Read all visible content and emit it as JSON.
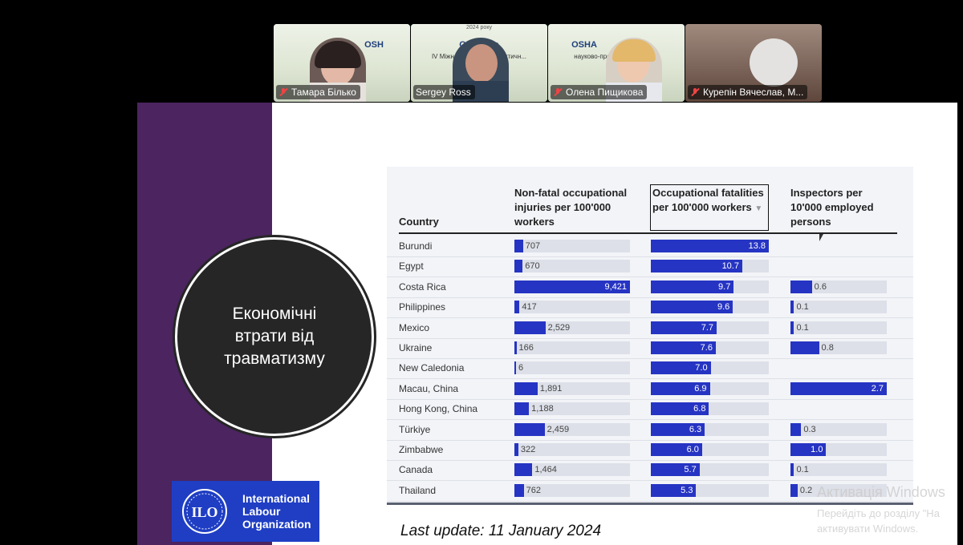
{
  "participants": [
    {
      "name": "Тамара Білько",
      "banner": "OSH",
      "banner_sub": "",
      "muted": true,
      "active": false
    },
    {
      "name": "Sergey Ross",
      "banner": "OSHAgro",
      "banner_sub": "IV Міжнар... науково-практичн...",
      "top_text": "2024 року",
      "muted": false,
      "active": true
    },
    {
      "name": "Олена Пищикова",
      "banner": "OSHA",
      "banner_sub": "науково-практи... нференція",
      "muted": true,
      "active": false
    },
    {
      "name": "Курепін Вячеслав, М...",
      "banner": "",
      "banner_sub": "",
      "muted": true,
      "active": false
    }
  ],
  "slide": {
    "circle_title": "Економічні втрати від травматизму",
    "last_update": "Last update: 11 January 2024",
    "ilo": {
      "line1": "International",
      "line2": "Labour",
      "line3": "Organization",
      "logo_text": "ILO"
    }
  },
  "table": {
    "headers": {
      "country": "Country",
      "injuries": "Non-fatal occupational injuries per 100'000 workers",
      "fatalities": "Occupational fatalities per 100'000 workers",
      "inspectors": "Inspectors per 10'000 employed persons"
    },
    "sort_indicator": "▼",
    "scale": {
      "injuries_max": 9421,
      "fatalities_max": 13.8,
      "inspectors_max": 2.7
    },
    "rows": [
      {
        "country": "Burundi",
        "injuries": 707,
        "injuries_label": "707",
        "fatalities": 13.8,
        "fatalities_label": "13.8",
        "inspectors": null,
        "inspectors_label": ""
      },
      {
        "country": "Egypt",
        "injuries": 670,
        "injuries_label": "670",
        "fatalities": 10.7,
        "fatalities_label": "10.7",
        "inspectors": null,
        "inspectors_label": ""
      },
      {
        "country": "Costa Rica",
        "injuries": 9421,
        "injuries_label": "9,421",
        "fatalities": 9.7,
        "fatalities_label": "9.7",
        "inspectors": 0.6,
        "inspectors_label": "0.6"
      },
      {
        "country": "Philippines",
        "injuries": 417,
        "injuries_label": "417",
        "fatalities": 9.6,
        "fatalities_label": "9.6",
        "inspectors": 0.1,
        "inspectors_label": "0.1"
      },
      {
        "country": "Mexico",
        "injuries": 2529,
        "injuries_label": "2,529",
        "fatalities": 7.7,
        "fatalities_label": "7.7",
        "inspectors": 0.1,
        "inspectors_label": "0.1"
      },
      {
        "country": "Ukraine",
        "injuries": 166,
        "injuries_label": "166",
        "fatalities": 7.6,
        "fatalities_label": "7.6",
        "inspectors": 0.8,
        "inspectors_label": "0.8"
      },
      {
        "country": "New Caledonia",
        "injuries": 6,
        "injuries_label": "6",
        "fatalities": 7.0,
        "fatalities_label": "7.0",
        "inspectors": null,
        "inspectors_label": ""
      },
      {
        "country": "Macau, China",
        "injuries": 1891,
        "injuries_label": "1,891",
        "fatalities": 6.9,
        "fatalities_label": "6.9",
        "inspectors": 2.7,
        "inspectors_label": "2.7"
      },
      {
        "country": "Hong Kong, China",
        "injuries": 1188,
        "injuries_label": "1,188",
        "fatalities": 6.8,
        "fatalities_label": "6.8",
        "inspectors": null,
        "inspectors_label": ""
      },
      {
        "country": "Türkiye",
        "injuries": 2459,
        "injuries_label": "2,459",
        "fatalities": 6.3,
        "fatalities_label": "6.3",
        "inspectors": 0.3,
        "inspectors_label": "0.3"
      },
      {
        "country": "Zimbabwe",
        "injuries": 322,
        "injuries_label": "322",
        "fatalities": 6.0,
        "fatalities_label": "6.0",
        "inspectors": 1.0,
        "inspectors_label": "1.0"
      },
      {
        "country": "Canada",
        "injuries": 1464,
        "injuries_label": "1,464",
        "fatalities": 5.7,
        "fatalities_label": "5.7",
        "inspectors": 0.1,
        "inspectors_label": "0.1"
      },
      {
        "country": "Thailand",
        "injuries": 762,
        "injuries_label": "762",
        "fatalities": 5.3,
        "fatalities_label": "5.3",
        "inspectors": 0.2,
        "inspectors_label": "0.2"
      }
    ]
  },
  "watermark": {
    "line1": "Активація Windows",
    "line2": "Перейдіть до розділу \"На",
    "line3": "активувати Windows."
  },
  "colors": {
    "bar": "#2634c3",
    "purple": "#4b2460",
    "ilo_blue": "#1f3ec4"
  }
}
